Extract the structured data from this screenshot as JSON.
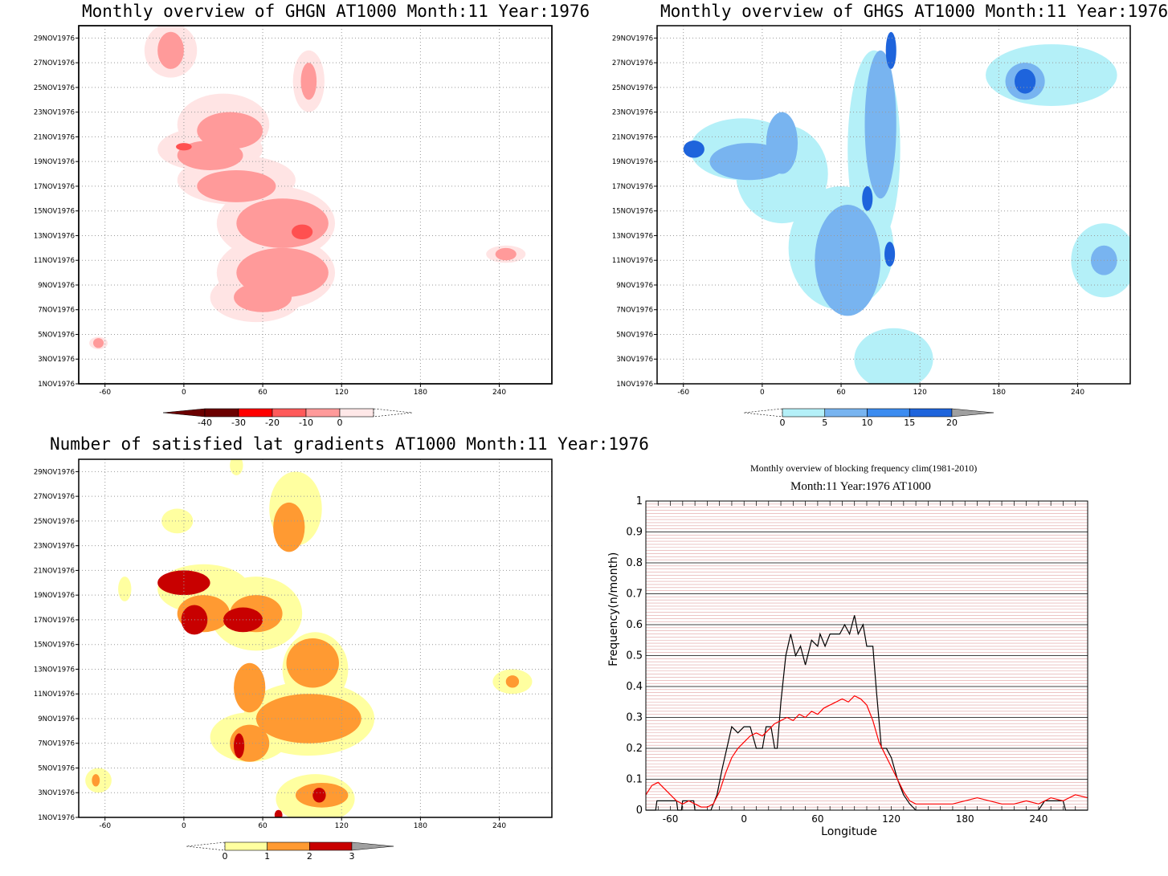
{
  "chart_data": [
    {
      "type": "heatmap",
      "title": "Monthly overview of GHGN AT1000 Month:11 Year:1976",
      "x_ticks": [
        -60,
        0,
        60,
        120,
        180,
        240
      ],
      "y_ticks": [
        "1NOV1976",
        "3NOV1976",
        "5NOV1976",
        "7NOV1976",
        "9NOV1976",
        "11NOV1976",
        "13NOV1976",
        "15NOV1976",
        "17NOV1976",
        "19NOV1976",
        "21NOV1976",
        "23NOV1976",
        "25NOV1976",
        "27NOV1976",
        "29NOV1976"
      ],
      "xlim": [
        -80,
        280
      ],
      "ylim": [
        1,
        30
      ],
      "colorbar": {
        "labels": [
          "-40",
          "-30",
          "-20",
          "-10",
          "0"
        ],
        "colors": [
          "#6b0000",
          "#ff0000",
          "#ff5a5a",
          "#ff9a9a",
          "#ffe8e8"
        ]
      },
      "blobs": [
        {
          "lon": -10,
          "day": 28,
          "rx": 20,
          "ry": 2.2,
          "level": 3
        },
        {
          "lon": 95,
          "day": 25.5,
          "rx": 12,
          "ry": 2.5,
          "level": 3
        },
        {
          "lon": 30,
          "day": 22,
          "rx": 35,
          "ry": 2.5,
          "level": 3
        },
        {
          "lon": 20,
          "day": 20,
          "rx": 40,
          "ry": 1.8,
          "level": 3
        },
        {
          "lon": 40,
          "day": 17.5,
          "rx": 45,
          "ry": 2.0,
          "level": 3
        },
        {
          "lon": 70,
          "day": 14,
          "rx": 45,
          "ry": 3.0,
          "level": 3
        },
        {
          "lon": 70,
          "day": 10,
          "rx": 45,
          "ry": 3.0,
          "level": 3
        },
        {
          "lon": 55,
          "day": 8,
          "rx": 35,
          "ry": 2.0,
          "level": 3
        },
        {
          "lon": 0,
          "day": 20.2,
          "rx": 8,
          "ry": 0.3,
          "level": 2
        },
        {
          "lon": 90,
          "day": 13.3,
          "rx": 10,
          "ry": 0.7,
          "level": 2
        },
        {
          "lon": 245,
          "day": 11.5,
          "rx": 15,
          "ry": 0.7,
          "level": 3
        },
        {
          "lon": -65,
          "day": 4.3,
          "rx": 7,
          "ry": 0.5,
          "level": 3
        }
      ]
    },
    {
      "type": "heatmap",
      "title": "Monthly overview of GHGS AT1000 Month:11 Year:1976",
      "x_ticks": [
        -60,
        0,
        60,
        120,
        180,
        240
      ],
      "y_ticks": [
        "1NOV1976",
        "3NOV1976",
        "5NOV1976",
        "7NOV1976",
        "9NOV1976",
        "11NOV1976",
        "13NOV1976",
        "15NOV1976",
        "17NOV1976",
        "19NOV1976",
        "21NOV1976",
        "23NOV1976",
        "25NOV1976",
        "27NOV1976",
        "29NOV1976"
      ],
      "xlim": [
        -80,
        280
      ],
      "ylim": [
        1,
        30
      ],
      "colorbar": {
        "labels": [
          "0",
          "5",
          "10",
          "15",
          "20"
        ],
        "colors": [
          "#b4f0f8",
          "#78b4f0",
          "#3c8cf0",
          "#1e64dc"
        ]
      },
      "blobs": [
        {
          "lon": -15,
          "day": 20,
          "rx": 40,
          "ry": 2.5,
          "level": 1
        },
        {
          "lon": 15,
          "day": 18,
          "rx": 35,
          "ry": 4,
          "level": 1
        },
        {
          "lon": 60,
          "day": 12,
          "rx": 40,
          "ry": 5,
          "level": 1
        },
        {
          "lon": 85,
          "day": 20,
          "rx": 20,
          "ry": 8,
          "level": 1
        },
        {
          "lon": 220,
          "day": 26,
          "rx": 50,
          "ry": 2.5,
          "level": 1
        },
        {
          "lon": 260,
          "day": 11,
          "rx": 25,
          "ry": 3,
          "level": 1
        },
        {
          "lon": 100,
          "day": 3,
          "rx": 30,
          "ry": 2.5,
          "level": 1
        },
        {
          "lon": -10,
          "day": 19,
          "rx": 30,
          "ry": 1.5,
          "level": 2
        },
        {
          "lon": 15,
          "day": 20.5,
          "rx": 12,
          "ry": 2.5,
          "level": 2
        },
        {
          "lon": 65,
          "day": 11,
          "rx": 25,
          "ry": 4.5,
          "level": 2
        },
        {
          "lon": 90,
          "day": 22,
          "rx": 12,
          "ry": 6,
          "level": 2
        },
        {
          "lon": 200,
          "day": 25.5,
          "rx": 15,
          "ry": 1.5,
          "level": 2
        },
        {
          "lon": 260,
          "day": 11,
          "rx": 10,
          "ry": 1.2,
          "level": 2
        },
        {
          "lon": -52,
          "day": 20,
          "rx": 8,
          "ry": 0.7,
          "level": 3
        },
        {
          "lon": 98,
          "day": 28,
          "rx": 4,
          "ry": 1.5,
          "level": 3
        },
        {
          "lon": 200,
          "day": 25.5,
          "rx": 8,
          "ry": 1.0,
          "level": 3
        },
        {
          "lon": 97,
          "day": 11.5,
          "rx": 4,
          "ry": 1.0,
          "level": 3
        },
        {
          "lon": 80,
          "day": 16,
          "rx": 4,
          "ry": 1.0,
          "level": 3
        }
      ]
    },
    {
      "type": "heatmap",
      "title": "Number of satisfied lat gradients AT1000 Month:11 Year:1976",
      "x_ticks": [
        -60,
        0,
        60,
        120,
        180,
        240
      ],
      "y_ticks": [
        "1NOV1976",
        "3NOV1976",
        "5NOV1976",
        "7NOV1976",
        "9NOV1976",
        "11NOV1976",
        "13NOV1976",
        "15NOV1976",
        "17NOV1976",
        "19NOV1976",
        "21NOV1976",
        "23NOV1976",
        "25NOV1976",
        "27NOV1976",
        "29NOV1976"
      ],
      "xlim": [
        -80,
        280
      ],
      "ylim": [
        1,
        30
      ],
      "colorbar": {
        "labels": [
          "0",
          "1",
          "2",
          "3"
        ],
        "colors": [
          "#ffffa0",
          "#ff9a32",
          "#c80000"
        ]
      },
      "blobs": [
        {
          "lon": -5,
          "day": 25,
          "rx": 12,
          "ry": 1.0,
          "level": 1
        },
        {
          "lon": 85,
          "day": 26,
          "rx": 20,
          "ry": 3,
          "level": 1
        },
        {
          "lon": 15,
          "day": 19.5,
          "rx": 35,
          "ry": 2,
          "level": 1
        },
        {
          "lon": 55,
          "day": 17.5,
          "rx": 35,
          "ry": 3,
          "level": 1
        },
        {
          "lon": 100,
          "day": 13,
          "rx": 25,
          "ry": 3,
          "level": 1
        },
        {
          "lon": 95,
          "day": 9,
          "rx": 50,
          "ry": 3,
          "level": 1
        },
        {
          "lon": 50,
          "day": 7.5,
          "rx": 30,
          "ry": 2,
          "level": 1
        },
        {
          "lon": 100,
          "day": 2.5,
          "rx": 30,
          "ry": 2,
          "level": 1
        },
        {
          "lon": 250,
          "day": 12,
          "rx": 15,
          "ry": 1,
          "level": 1
        },
        {
          "lon": -65,
          "day": 4,
          "rx": 10,
          "ry": 1,
          "level": 1
        },
        {
          "lon": -45,
          "day": 19.5,
          "rx": 5,
          "ry": 1,
          "level": 1
        },
        {
          "lon": 40,
          "day": 29.5,
          "rx": 5,
          "ry": 0.8,
          "level": 1
        },
        {
          "lon": 80,
          "day": 24.5,
          "rx": 12,
          "ry": 2.0,
          "level": 2
        },
        {
          "lon": 15,
          "day": 17.5,
          "rx": 20,
          "ry": 1.5,
          "level": 2
        },
        {
          "lon": 55,
          "day": 17.5,
          "rx": 20,
          "ry": 1.5,
          "level": 2
        },
        {
          "lon": 98,
          "day": 13.5,
          "rx": 20,
          "ry": 2,
          "level": 2
        },
        {
          "lon": 95,
          "day": 9,
          "rx": 40,
          "ry": 2,
          "level": 2
        },
        {
          "lon": 50,
          "day": 11.5,
          "rx": 12,
          "ry": 2,
          "level": 2
        },
        {
          "lon": 50,
          "day": 7,
          "rx": 15,
          "ry": 1.5,
          "level": 2
        },
        {
          "lon": 105,
          "day": 2.8,
          "rx": 20,
          "ry": 1,
          "level": 2
        },
        {
          "lon": 250,
          "day": 12,
          "rx": 5,
          "ry": 0.5,
          "level": 2
        },
        {
          "lon": -67,
          "day": 4,
          "rx": 3,
          "ry": 0.5,
          "level": 2
        },
        {
          "lon": 0,
          "day": 20,
          "rx": 20,
          "ry": 1.0,
          "level": 3
        },
        {
          "lon": 8,
          "day": 17,
          "rx": 10,
          "ry": 1.2,
          "level": 3
        },
        {
          "lon": 45,
          "day": 17,
          "rx": 15,
          "ry": 1.0,
          "level": 3
        },
        {
          "lon": 42,
          "day": 6.8,
          "rx": 4,
          "ry": 1.0,
          "level": 3
        },
        {
          "lon": 103,
          "day": 2.8,
          "rx": 5,
          "ry": 0.6,
          "level": 3
        },
        {
          "lon": 72,
          "day": 1.2,
          "rx": 3,
          "ry": 0.4,
          "level": 3
        }
      ]
    },
    {
      "type": "line",
      "title": "Monthly overview of blocking frequency clim(1981-2010)",
      "subtitle": "Month:11 Year:1976  AT1000",
      "xlabel": "Longitude",
      "ylabel": "Frequency(n/month)",
      "xlim": [
        -80,
        280
      ],
      "ylim": [
        0,
        1
      ],
      "x_ticks": [
        -60,
        0,
        60,
        120,
        180,
        240
      ],
      "y_ticks": [
        0,
        0.1,
        0.2,
        0.3,
        0.4,
        0.5,
        0.6,
        0.7,
        0.8,
        0.9,
        1
      ],
      "grid": true,
      "series": [
        {
          "name": "",
          "color": "#000000",
          "x": [
            -80,
            -72,
            -71,
            -55,
            -54,
            -51,
            -50,
            -41,
            -40,
            -30,
            -27,
            -22,
            -18,
            -14,
            -10,
            -5,
            0,
            5,
            10,
            15,
            18,
            22,
            25,
            27,
            30,
            34,
            38,
            42,
            46,
            50,
            55,
            60,
            62,
            66,
            70,
            74,
            78,
            82,
            86,
            90,
            93,
            97,
            100,
            105,
            108,
            112,
            116,
            120,
            125,
            130,
            135,
            140,
            145,
            180,
            220,
            240,
            245,
            260,
            262,
            280
          ],
          "y": [
            0,
            0,
            0.03,
            0.03,
            0,
            0,
            0.03,
            0.03,
            0,
            0,
            0,
            0.05,
            0.13,
            0.2,
            0.27,
            0.25,
            0.27,
            0.27,
            0.2,
            0.2,
            0.27,
            0.27,
            0.2,
            0.2,
            0.35,
            0.5,
            0.57,
            0.5,
            0.53,
            0.47,
            0.55,
            0.53,
            0.57,
            0.53,
            0.57,
            0.57,
            0.57,
            0.6,
            0.57,
            0.63,
            0.57,
            0.6,
            0.53,
            0.53,
            0.38,
            0.2,
            0.2,
            0.17,
            0.1,
            0.05,
            0.02,
            0,
            0,
            0,
            0,
            0,
            0.03,
            0.03,
            0,
            0
          ]
        },
        {
          "name": "",
          "color": "#ff0000",
          "x": [
            -80,
            -75,
            -70,
            -65,
            -60,
            -55,
            -50,
            -45,
            -40,
            -35,
            -30,
            -25,
            -20,
            -15,
            -10,
            -5,
            0,
            5,
            10,
            15,
            20,
            25,
            30,
            35,
            40,
            45,
            50,
            55,
            60,
            65,
            70,
            75,
            80,
            85,
            90,
            95,
            100,
            105,
            110,
            115,
            120,
            125,
            130,
            135,
            140,
            145,
            150,
            160,
            170,
            180,
            190,
            200,
            210,
            220,
            230,
            240,
            250,
            260,
            270,
            280
          ],
          "y": [
            0.05,
            0.08,
            0.09,
            0.07,
            0.05,
            0.03,
            0.02,
            0.03,
            0.02,
            0.01,
            0.01,
            0.02,
            0.06,
            0.12,
            0.17,
            0.2,
            0.22,
            0.24,
            0.25,
            0.24,
            0.26,
            0.28,
            0.29,
            0.3,
            0.29,
            0.31,
            0.3,
            0.32,
            0.31,
            0.33,
            0.34,
            0.35,
            0.36,
            0.35,
            0.37,
            0.36,
            0.34,
            0.29,
            0.22,
            0.18,
            0.14,
            0.1,
            0.06,
            0.03,
            0.02,
            0.02,
            0.02,
            0.02,
            0.02,
            0.03,
            0.04,
            0.03,
            0.02,
            0.02,
            0.03,
            0.02,
            0.04,
            0.03,
            0.05,
            0.04
          ]
        }
      ]
    }
  ]
}
